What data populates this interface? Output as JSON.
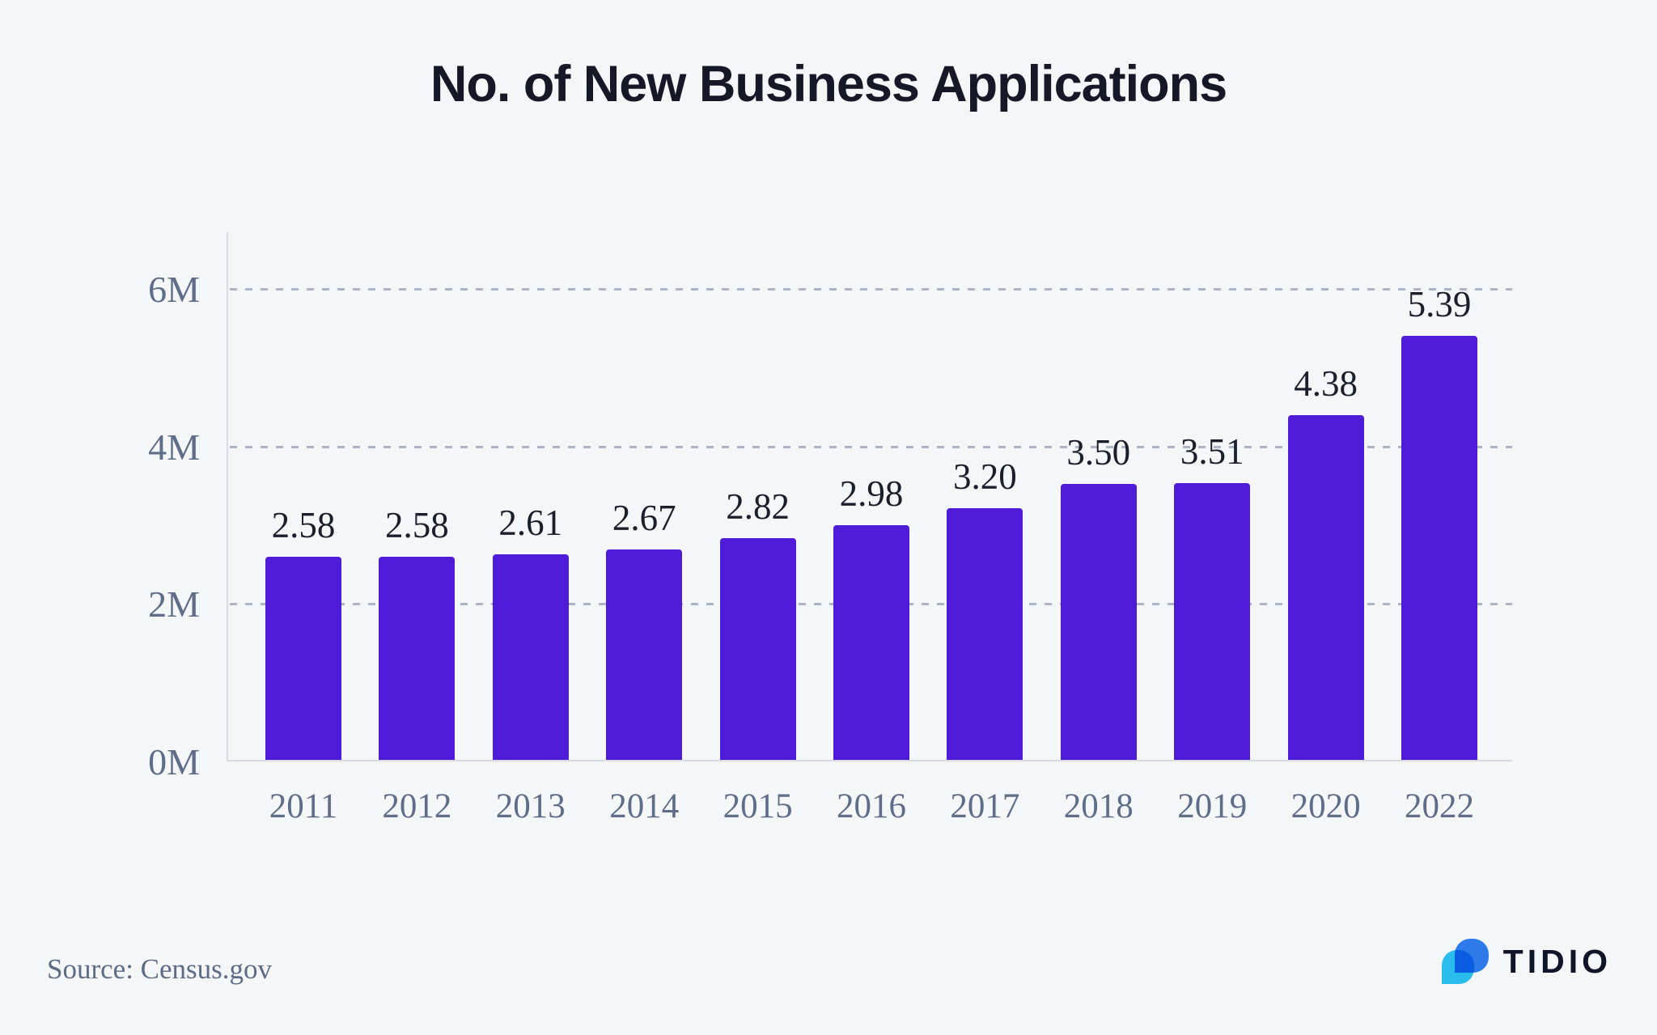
{
  "chart_data": {
    "type": "bar",
    "title": "No. of New Business Applications",
    "categories": [
      "2011",
      "2012",
      "2013",
      "2014",
      "2015",
      "2016",
      "2017",
      "2018",
      "2019",
      "2020",
      "2022"
    ],
    "values": [
      2.58,
      2.58,
      2.61,
      2.67,
      2.82,
      2.98,
      3.2,
      3.5,
      3.51,
      4.38,
      5.39
    ],
    "value_labels": [
      "2.58",
      "2.58",
      "2.61",
      "2.67",
      "2.82",
      "2.98",
      "3.20",
      "3.50",
      "3.51",
      "4.38",
      "5.39"
    ],
    "unit": "millions",
    "xlabel": "",
    "ylabel": "",
    "y_ticks": [
      "0M",
      "2M",
      "4M",
      "6M"
    ],
    "y_tick_values": [
      0,
      2,
      4,
      6
    ],
    "ylim": [
      0,
      6.72
    ],
    "grid": "dashed-horizontal",
    "legend": "none"
  },
  "source": {
    "text": "Source: Census.gov"
  },
  "brand": {
    "name": "TIDIO"
  },
  "colors": {
    "background": "#f5f6f8",
    "bar": "#4e1cd6",
    "title_text": "#141827",
    "value_label_text": "#1a1f2c",
    "axis_label_text": "#5f6d88",
    "gridline": "#abb5c7",
    "axis_line": "#d7dbe3",
    "logo_blue": "#2e7ef2",
    "logo_cyan": "#2bc3f4",
    "logo_text": "#101527"
  }
}
